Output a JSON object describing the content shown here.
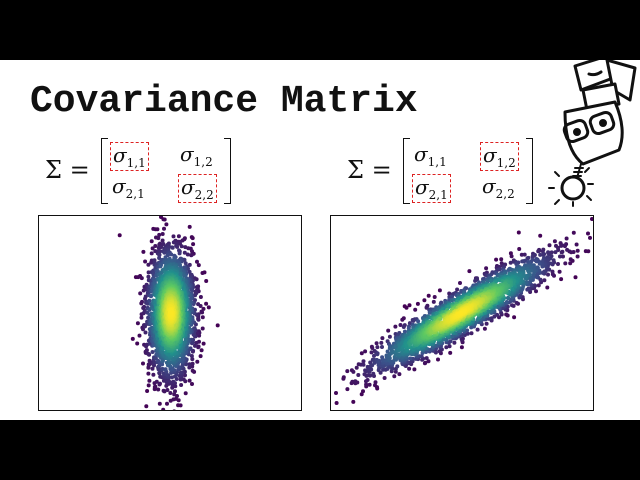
{
  "title": "Covariance Matrix",
  "colormap": "viridis",
  "equations": [
    {
      "lhs": "Σ =",
      "cells": [
        [
          "σ",
          "1,1"
        ],
        [
          "σ",
          "1,2"
        ],
        [
          "σ",
          "2,1"
        ],
        [
          "σ",
          "2,2"
        ]
      ],
      "highlighted": [
        "1,1",
        "2,2"
      ]
    },
    {
      "lhs": "Σ =",
      "cells": [
        [
          "σ",
          "1,1"
        ],
        [
          "σ",
          "1,2"
        ],
        [
          "σ",
          "2,1"
        ],
        [
          "σ",
          "2,2"
        ]
      ],
      "highlighted": [
        "1,2",
        "2,1"
      ]
    }
  ],
  "colors": {
    "highlight_box": "#dd2222",
    "letterbox": "#000000"
  }
}
